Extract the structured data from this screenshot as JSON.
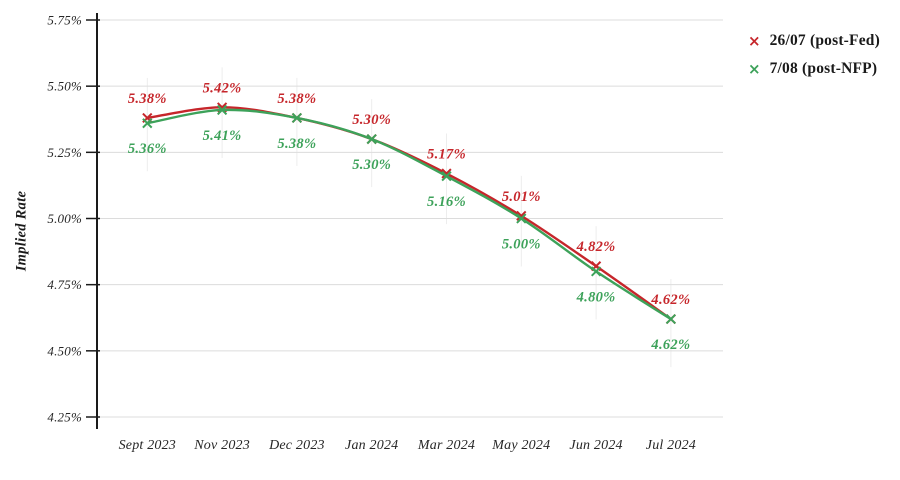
{
  "chart_data": {
    "type": "line",
    "title": "",
    "xlabel": "",
    "ylabel": "Implied Rate",
    "categories": [
      "Sept 2023",
      "Nov 2023",
      "Dec 2023",
      "Jan 2024",
      "Mar 2024",
      "May 2024",
      "Jun 2024",
      "Jul 2024"
    ],
    "series": [
      {
        "name": "26/07 (post-Fed)",
        "color": "#c6262b",
        "marker": "x-cross",
        "label_position": "above",
        "values": [
          5.38,
          5.42,
          5.38,
          5.3,
          5.17,
          5.01,
          4.82,
          4.62
        ],
        "labels": [
          "5.38%",
          "5.42%",
          "5.38%",
          "5.30%",
          "5.17%",
          "5.01%",
          "4.82%",
          "4.62%"
        ]
      },
      {
        "name": "7/08 (post-NFP)",
        "color": "#3da25a",
        "marker": "x-cross",
        "label_position": "below",
        "values": [
          5.36,
          5.41,
          5.38,
          5.3,
          5.16,
          5.0,
          4.8,
          4.62
        ],
        "labels": [
          "5.36%",
          "5.41%",
          "5.38%",
          "5.30%",
          "5.16%",
          "5.00%",
          "4.80%",
          "4.62%"
        ]
      }
    ],
    "y_axis": {
      "min": 4.25,
      "max": 5.75,
      "step": 0.25,
      "tick_labels": [
        "5.75%",
        "5.50%",
        "5.25%",
        "5.00%",
        "4.75%",
        "4.50%",
        "4.25%"
      ]
    },
    "grid": true,
    "legend_position": "top-right",
    "line_style": "smooth"
  },
  "colors": {
    "background": "#ffffff",
    "gridline": "#dcdcdc",
    "whisker": "#ededed",
    "axis": "#1a1a1a",
    "tick_text": "#262626"
  }
}
